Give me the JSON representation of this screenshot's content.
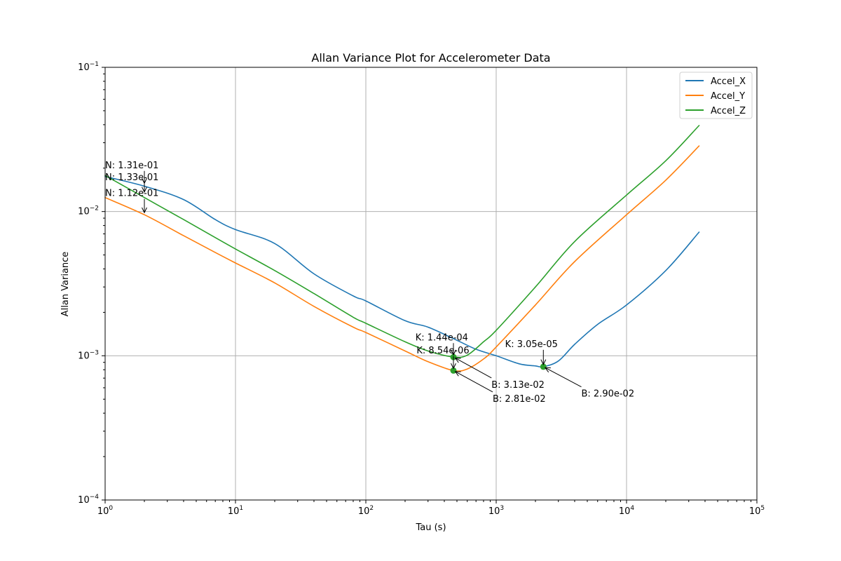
{
  "chart_data": {
    "type": "line",
    "title": "Allan Variance Plot for Accelerometer Data",
    "xlabel": "Tau (s)",
    "ylabel": "Allan Variance",
    "xscale": "log",
    "yscale": "log",
    "xlim": [
      1,
      100000
    ],
    "ylim": [
      0.0001,
      0.1
    ],
    "x_tick_base": "10",
    "x_tick_exponents": [
      "0",
      "1",
      "2",
      "3",
      "4",
      "5"
    ],
    "y_tick_base": "10",
    "y_tick_exponents": [
      "−4",
      "−3",
      "−2",
      "−1"
    ],
    "grid": true,
    "legend_position": "top-right",
    "series": [
      {
        "name": "Accel_X",
        "color": "#1f77b4",
        "x": [
          1,
          2,
          4,
          7,
          10,
          20,
          40,
          80,
          100,
          200,
          300,
          500,
          700,
          1000,
          1500,
          2000,
          2300,
          3000,
          4000,
          6000,
          10000,
          20000,
          36000
        ],
        "y": [
          0.0175,
          0.015,
          0.0121,
          0.0088,
          0.0075,
          0.006,
          0.0037,
          0.0026,
          0.0024,
          0.00175,
          0.00158,
          0.00128,
          0.00111,
          0.001,
          0.00088,
          0.00085,
          0.00084,
          0.00092,
          0.0012,
          0.00165,
          0.00225,
          0.0039,
          0.0072
        ]
      },
      {
        "name": "Accel_Y",
        "color": "#ff7f0e",
        "x": [
          1,
          2,
          4,
          7,
          10,
          20,
          40,
          80,
          100,
          200,
          300,
          470,
          600,
          800,
          1000,
          2000,
          4000,
          10000,
          20000,
          36000
        ],
        "y": [
          0.0125,
          0.0095,
          0.0068,
          0.0052,
          0.0044,
          0.0032,
          0.0022,
          0.00158,
          0.00145,
          0.00108,
          0.00091,
          0.00079,
          0.00081,
          0.00095,
          0.00115,
          0.00225,
          0.0045,
          0.0095,
          0.0165,
          0.0285
        ]
      },
      {
        "name": "Accel_Z",
        "color": "#2ca02c",
        "x": [
          1,
          2,
          4,
          7,
          10,
          20,
          40,
          80,
          100,
          200,
          300,
          470,
          600,
          800,
          1000,
          2000,
          4000,
          10000,
          20000,
          36000
        ],
        "y": [
          0.0178,
          0.0125,
          0.0088,
          0.0066,
          0.0055,
          0.0039,
          0.0027,
          0.00185,
          0.00168,
          0.00125,
          0.00108,
          0.00098,
          0.00101,
          0.00125,
          0.0015,
          0.003,
          0.0062,
          0.013,
          0.0225,
          0.0395
        ]
      }
    ],
    "markers": [
      {
        "series": "Accel_X",
        "x": 2300,
        "y": 0.00084
      },
      {
        "series": "Accel_Y",
        "x": 470,
        "y": 0.00079
      },
      {
        "series": "Accel_Z",
        "x": 470,
        "y": 0.00098
      }
    ],
    "annotations": [
      {
        "text": "N: 1.31e-01",
        "x": 2,
        "y": 0.0152,
        "text_x": 1.0,
        "text_y": 0.02,
        "series": "Accel_X"
      },
      {
        "text": "N: 1.33e-01",
        "x": 2,
        "y": 0.0132,
        "text_x": 1.0,
        "text_y": 0.0165,
        "series": "Accel_Z"
      },
      {
        "text": "N: 1.12e-01",
        "x": 2,
        "y": 0.0095,
        "text_x": 1.0,
        "text_y": 0.0128,
        "series": "Accel_Y"
      },
      {
        "text": "K: 1.44e-04",
        "x": 470,
        "y": 0.00098,
        "text_x": 240,
        "text_y": 0.00128,
        "series": "Accel_Z"
      },
      {
        "text": "K: 8.54e-06",
        "x": 470,
        "y": 0.00079,
        "text_x": 245,
        "text_y": 0.00104,
        "series": "Accel_Y"
      },
      {
        "text": "K: 3.05e-05",
        "x": 2300,
        "y": 0.00084,
        "text_x": 1170,
        "text_y": 0.00115,
        "series": "Accel_X"
      },
      {
        "text": "B: 3.13e-02",
        "x": 470,
        "y": 0.00098,
        "text_x": 920,
        "text_y": 0.0006,
        "series": "Accel_Z"
      },
      {
        "text": "B: 2.81e-02",
        "x": 470,
        "y": 0.00079,
        "text_x": 940,
        "text_y": 0.00048,
        "series": "Accel_Y"
      },
      {
        "text": "B: 2.90e-02",
        "x": 2300,
        "y": 0.00084,
        "text_x": 4500,
        "text_y": 0.00052,
        "series": "Accel_X"
      }
    ]
  }
}
